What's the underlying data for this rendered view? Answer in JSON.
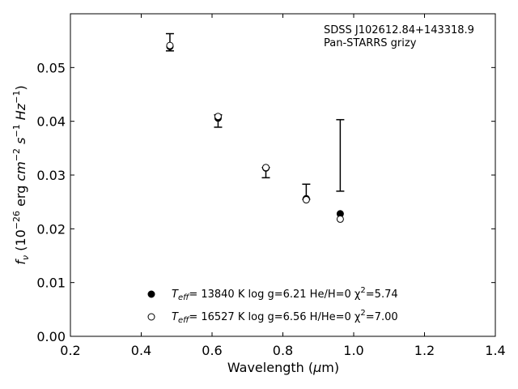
{
  "chart_data": {
    "type": "scatter",
    "title": "",
    "xlabel": "Wavelength (μm)",
    "ylabel": "f_ν (10^-26 erg cm^-2 s^-1 Hz^-1)",
    "xlim": [
      0.2,
      1.4
    ],
    "ylim": [
      0.0,
      0.06
    ],
    "x_ticks": [
      0.2,
      0.4,
      0.6,
      0.8,
      1.0,
      1.2,
      1.4
    ],
    "x_tick_labels": [
      "0.2",
      "0.4",
      "0.6",
      "0.8",
      "1.0",
      "1.2",
      "1.4"
    ],
    "y_ticks": [
      0.0,
      0.01,
      0.02,
      0.03,
      0.04,
      0.05
    ],
    "y_tick_labels": [
      "0.00",
      "0.01",
      "0.02",
      "0.03",
      "0.04",
      "0.05"
    ],
    "grid": false,
    "annotation": {
      "line1": "SDSS J102612.84+143318.9",
      "line2": "Pan-STARRS grizy"
    },
    "observed": {
      "x": [
        0.481,
        0.617,
        0.752,
        0.866,
        0.962
      ],
      "y_low": [
        0.0531,
        0.0389,
        0.0295,
        0.0255,
        0.027
      ],
      "y_high": [
        0.0563,
        0.0412,
        0.0314,
        0.0283,
        0.0403
      ]
    },
    "series": [
      {
        "marker": "filled",
        "x": [
          0.481,
          0.617,
          0.752,
          0.866,
          0.962
        ],
        "y": [
          0.0539,
          0.0406,
          0.0313,
          0.0256,
          0.0228
        ]
      },
      {
        "marker": "open",
        "x": [
          0.481,
          0.617,
          0.752,
          0.866,
          0.962
        ],
        "y": [
          0.0541,
          0.0409,
          0.0314,
          0.0254,
          0.0218
        ]
      }
    ],
    "legend": {
      "placement": "lower-center",
      "entries": [
        {
          "teff": "T",
          "sub": "eff",
          "rest": "= 13840 K  log g=6.21  He/H=0  χ",
          "sup": "2",
          "tail": "=5.74"
        },
        {
          "teff": "T",
          "sub": "eff",
          "rest": "= 16527 K  log g=6.56  H/He=0  χ",
          "sup": "2",
          "tail": "=7.00"
        }
      ]
    }
  }
}
